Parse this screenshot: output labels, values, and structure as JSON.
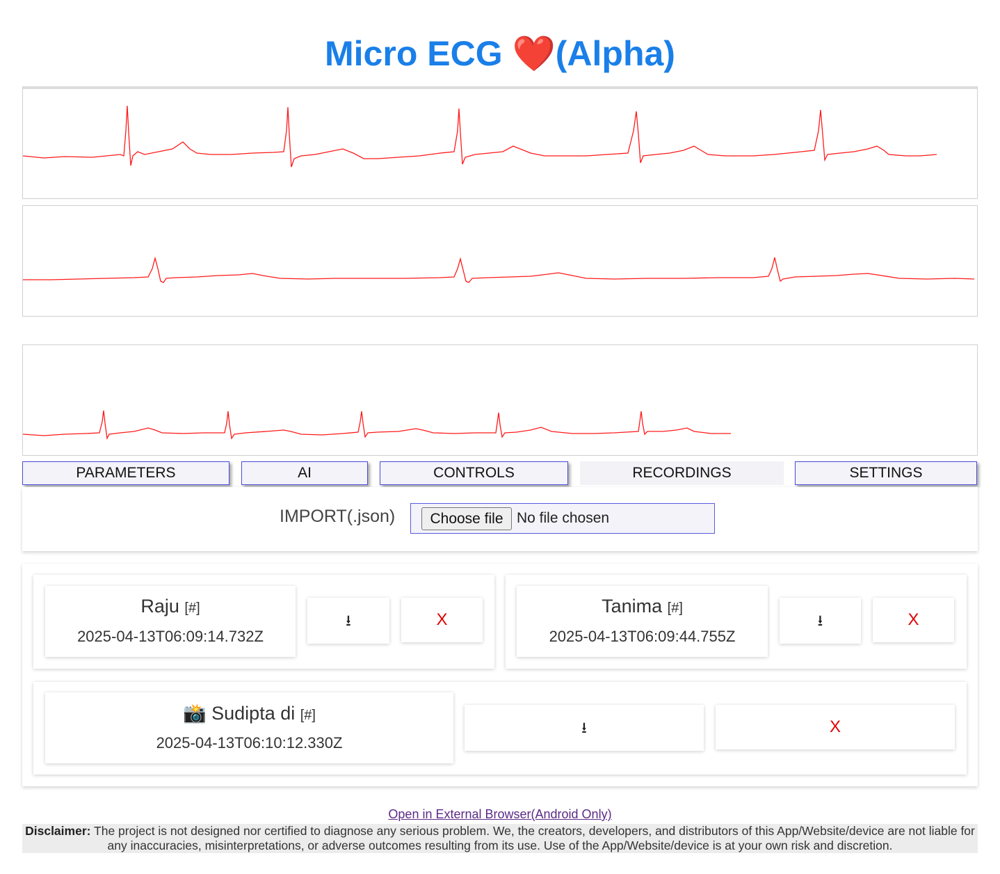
{
  "header": {
    "title": "Micro ECG ",
    "heart": "❤️",
    "suffix": "(Alpha)"
  },
  "ecg_traces": [
    {
      "trace": "lead-1",
      "color": "#ff0000"
    },
    {
      "trace": "lead-2",
      "color": "#ff0000"
    },
    {
      "trace": "lead-3",
      "color": "#ff0000"
    }
  ],
  "tabs": {
    "parameters": "PARAMETERS",
    "ai": "AI",
    "controls": "CONTROLS",
    "recordings": "RECORDINGS",
    "settings": "SETTINGS",
    "active": "RECORDINGS"
  },
  "import": {
    "label": "IMPORT(.json)",
    "button": "Choose file",
    "status": "No file chosen"
  },
  "recordings": [
    {
      "icon": "",
      "name": "Raju",
      "tag": "[#]",
      "time": "2025-04-13T06:09:14.732Z",
      "download": "⭳",
      "delete": "X"
    },
    {
      "icon": "",
      "name": "Tanima",
      "tag": "[#]",
      "time": "2025-04-13T06:09:44.755Z",
      "download": "⭳",
      "delete": "X"
    },
    {
      "icon": "📸",
      "name": "Sudipta di",
      "tag": "[#]",
      "time": "2025-04-13T06:10:12.330Z",
      "download": "⭳",
      "delete": "X"
    }
  ],
  "footer": {
    "link": "Open in External Browser(Android Only)",
    "disclaimer_label": "Disclaimer:",
    "disclaimer_text": "The project is not designed nor certified to diagnose any serious problem. We, the creators, developers, and distributors of this App/Website/device are not liable for any inaccuracies, misinterpretations, or adverse outcomes resulting from its use. Use of the App/Website/device is at your own risk and discretion."
  },
  "colors": {
    "title": "#1a7fe8",
    "ecg_line": "#ff0000",
    "tab_border": "#4b4bd8",
    "delete": "#e00000"
  }
}
